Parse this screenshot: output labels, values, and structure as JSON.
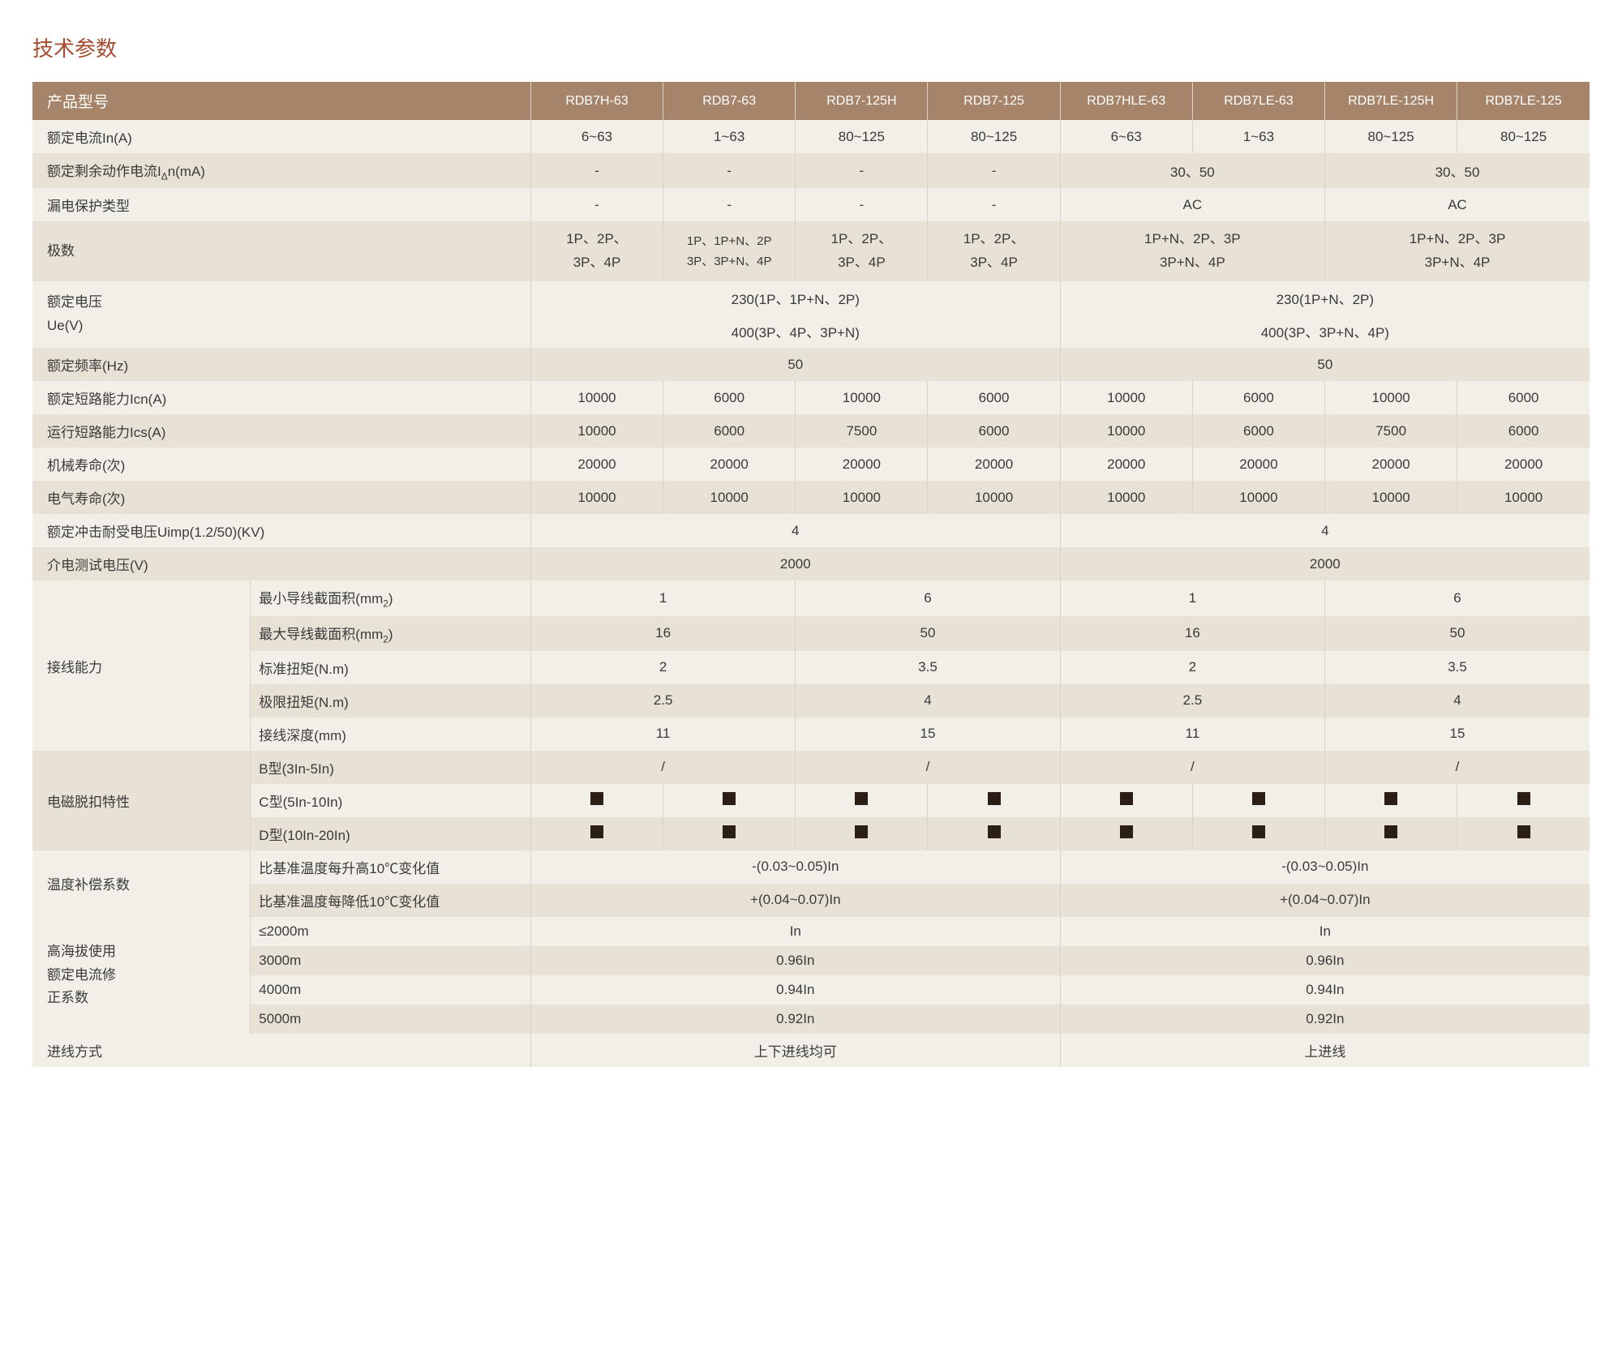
{
  "title": "技术参数",
  "colors": {
    "accent": "#a54b2e",
    "header_bg": "#a5846a",
    "row_a": "#f2efe9",
    "row_b": "#e8e1d5",
    "square": "#2b1f15",
    "border": "#d8d2c8"
  },
  "headers": {
    "label": "产品型号",
    "cols": [
      "RDB7H-63",
      "RDB7-63",
      "RDB7-125H",
      "RDB7-125",
      "RDB7HLE-63",
      "RDB7LE-63",
      "RDB7LE-125H",
      "RDB7LE-125"
    ]
  },
  "rows": {
    "rated_current": {
      "label": "额定电流In(A)",
      "vals": [
        "6~63",
        "1~63",
        "80~125",
        "80~125",
        "6~63",
        "1~63",
        "80~125",
        "80~125"
      ]
    },
    "residual_current": {
      "label": "额定剩余动作电流IΔn(mA)",
      "vals": [
        "-",
        "-",
        "-",
        "-",
        "30、50",
        "30、50"
      ]
    },
    "leakage_type": {
      "label": "漏电保护类型",
      "vals": [
        "-",
        "-",
        "-",
        "-",
        "AC",
        "AC"
      ]
    },
    "poles": {
      "label": "极数",
      "vals": [
        "1P、2P、\n3P、4P",
        "1P、1P+N、2P\n3P、3P+N、4P",
        "1P、2P、\n3P、4P",
        "1P、2P、\n3P、4P",
        "1P+N、2P、3P\n3P+N、4P",
        "1P+N、2P、3P\n3P+N、4P"
      ]
    },
    "rated_voltage": {
      "label1": "额定电压",
      "label2": "Ue(V)",
      "line1": [
        "230(1P、1P+N、2P)",
        "230(1P+N、2P)"
      ],
      "line2": [
        "400(3P、4P、3P+N)",
        "400(3P、3P+N、4P)"
      ]
    },
    "freq": {
      "label": "额定频率(Hz)",
      "vals": [
        "50",
        "50"
      ]
    },
    "icn": {
      "label": "额定短路能力Icn(A)",
      "vals": [
        "10000",
        "6000",
        "10000",
        "6000",
        "10000",
        "6000",
        "10000",
        "6000"
      ]
    },
    "ics": {
      "label": "运行短路能力Ics(A)",
      "vals": [
        "10000",
        "6000",
        "7500",
        "6000",
        "10000",
        "6000",
        "7500",
        "6000"
      ]
    },
    "mech_life": {
      "label": "机械寿命(次)",
      "vals": [
        "20000",
        "20000",
        "20000",
        "20000",
        "20000",
        "20000",
        "20000",
        "20000"
      ]
    },
    "elec_life": {
      "label": "电气寿命(次)",
      "vals": [
        "10000",
        "10000",
        "10000",
        "10000",
        "10000",
        "10000",
        "10000",
        "10000"
      ]
    },
    "uimp": {
      "label": "额定冲击耐受电压Uimp(1.2/50)(KV)",
      "vals": [
        "4",
        "4"
      ]
    },
    "dielectric": {
      "label": "介电测试电压(V)",
      "vals": [
        "2000",
        "2000"
      ]
    },
    "wiring": {
      "group": "接线能力",
      "rows": [
        {
          "label": "最小导线截面积(mm²)",
          "vals": [
            "1",
            "6",
            "1",
            "6"
          ]
        },
        {
          "label": "最大导线截面积(mm²)",
          "vals": [
            "16",
            "50",
            "16",
            "50"
          ]
        },
        {
          "label": "标准扭矩(N.m)",
          "vals": [
            "2",
            "3.5",
            "2",
            "3.5"
          ]
        },
        {
          "label": "极限扭矩(N.m)",
          "vals": [
            "2.5",
            "4",
            "2.5",
            "4"
          ]
        },
        {
          "label": "接线深度(mm)",
          "vals": [
            "11",
            "15",
            "11",
            "15"
          ]
        }
      ]
    },
    "trip": {
      "group": "电磁脱扣特性",
      "rows": [
        {
          "label": "B型(3In-5In)",
          "type": "slash",
          "vals": [
            "/",
            "/",
            "/",
            "/"
          ]
        },
        {
          "label": "C型(5In-10In)",
          "type": "square"
        },
        {
          "label": "D型(10In-20In)",
          "type": "square"
        }
      ]
    },
    "temp": {
      "group": "温度补偿系数",
      "rows": [
        {
          "label": "比基准温度每升高10℃变化值",
          "vals": [
            "-(0.03~0.05)In",
            "-(0.03~0.05)In"
          ]
        },
        {
          "label": "比基准温度每降低10℃变化值",
          "vals": [
            "+(0.04~0.07)In",
            "+(0.04~0.07)In"
          ]
        }
      ]
    },
    "altitude": {
      "group": "高海拔使用\n额定电流修\n正系数",
      "rows": [
        {
          "label": "≤2000m",
          "vals": [
            "In",
            "In"
          ]
        },
        {
          "label": "3000m",
          "vals": [
            "0.96In",
            "0.96In"
          ]
        },
        {
          "label": "4000m",
          "vals": [
            "0.94In",
            "0.94In"
          ]
        },
        {
          "label": "5000m",
          "vals": [
            "0.92In",
            "0.92In"
          ]
        }
      ]
    },
    "inlet": {
      "label": "进线方式",
      "vals": [
        "上下进线均可",
        "上进线"
      ]
    }
  }
}
